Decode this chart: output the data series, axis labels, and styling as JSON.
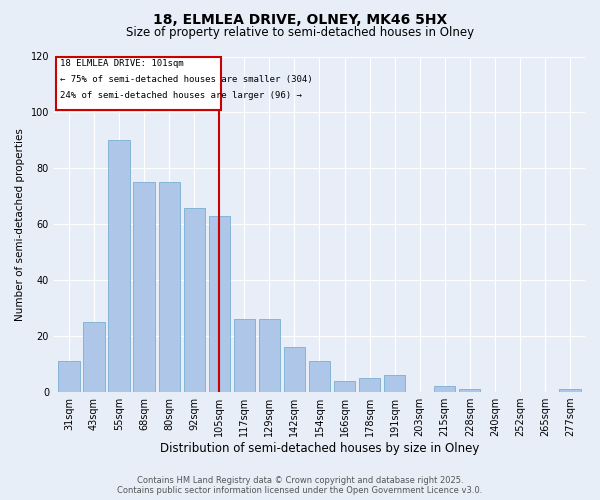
{
  "title1": "18, ELMLEA DRIVE, OLNEY, MK46 5HX",
  "title2": "Size of property relative to semi-detached houses in Olney",
  "xlabel": "Distribution of semi-detached houses by size in Olney",
  "ylabel": "Number of semi-detached properties",
  "categories": [
    "31sqm",
    "43sqm",
    "55sqm",
    "68sqm",
    "80sqm",
    "92sqm",
    "105sqm",
    "117sqm",
    "129sqm",
    "142sqm",
    "154sqm",
    "166sqm",
    "178sqm",
    "191sqm",
    "203sqm",
    "215sqm",
    "228sqm",
    "240sqm",
    "252sqm",
    "265sqm",
    "277sqm"
  ],
  "values": [
    11,
    25,
    90,
    75,
    75,
    66,
    63,
    26,
    26,
    16,
    11,
    4,
    5,
    6,
    0,
    2,
    1,
    0,
    0,
    0,
    1
  ],
  "bar_color": "#aec6e8",
  "bar_edge_color": "#7aafd4",
  "bg_color": "#e8eef8",
  "vline_index": 6,
  "vline_label": "18 ELMLEA DRIVE: 101sqm",
  "annotation1": "← 75% of semi-detached houses are smaller (304)",
  "annotation2": "24% of semi-detached houses are larger (96) →",
  "box_color": "#cc0000",
  "ylim": [
    0,
    120
  ],
  "yticks": [
    0,
    20,
    40,
    60,
    80,
    100,
    120
  ],
  "footer1": "Contains HM Land Registry data © Crown copyright and database right 2025.",
  "footer2": "Contains public sector information licensed under the Open Government Licence v3.0."
}
